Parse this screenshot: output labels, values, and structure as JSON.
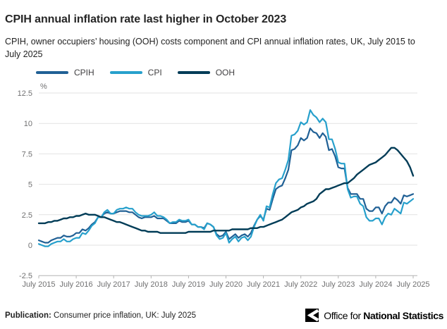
{
  "header": {
    "title": "CPIH annual inflation rate last higher in October 2023",
    "subtitle": "CPIH, owner occupiers’ housing (OOH) costs component and CPI annual inflation rates, UK, July 2015 to July 2025"
  },
  "chart_data": {
    "type": "line",
    "title": "CPIH annual inflation rate last higher in October 2023",
    "unit_label": "%",
    "xlabel": "",
    "ylabel": "%",
    "ylim": [
      -2.5,
      12.5
    ],
    "y_ticks": [
      12.5,
      10,
      7.5,
      5,
      2.5,
      0,
      -2.5
    ],
    "x_tick_labels": [
      "July 2015",
      "July 2016",
      "July 2017",
      "July 2018",
      "July 2019",
      "July 2020",
      "July 2021",
      "July 2022",
      "July 2023",
      "July 2024",
      "July 2025"
    ],
    "x_frequency": "monthly",
    "x_range": [
      "July 2015",
      "July 2025"
    ],
    "grid": true,
    "legend_position": "top-left",
    "series": [
      {
        "name": "CPIH",
        "color": "#206095",
        "values": [
          0.4,
          0.3,
          0.2,
          0.2,
          0.4,
          0.5,
          0.6,
          0.6,
          0.8,
          0.7,
          0.7,
          0.8,
          1.0,
          1.0,
          1.3,
          1.2,
          1.4,
          1.7,
          1.9,
          2.3,
          2.3,
          2.6,
          2.7,
          2.6,
          2.6,
          2.7,
          2.8,
          2.8,
          2.8,
          2.7,
          2.7,
          2.5,
          2.3,
          2.2,
          2.3,
          2.3,
          2.3,
          2.4,
          2.2,
          2.2,
          2.2,
          2.0,
          1.8,
          1.8,
          1.8,
          2.0,
          1.9,
          1.9,
          2.0,
          1.7,
          1.7,
          1.5,
          1.5,
          1.4,
          1.8,
          1.7,
          1.5,
          0.9,
          0.7,
          0.8,
          1.1,
          0.5,
          0.7,
          0.9,
          0.6,
          0.8,
          0.9,
          0.7,
          1.0,
          1.6,
          2.1,
          2.4,
          2.1,
          3.0,
          2.9,
          3.8,
          4.6,
          4.8,
          4.9,
          5.5,
          6.2,
          7.8,
          7.9,
          8.2,
          8.8,
          8.6,
          8.8,
          9.6,
          9.3,
          9.2,
          8.8,
          9.2,
          8.9,
          7.8,
          7.9,
          7.3,
          6.4,
          6.3,
          6.3,
          4.7,
          4.2,
          4.2,
          4.2,
          3.8,
          3.8,
          3.0,
          2.8,
          2.8,
          3.1,
          3.1,
          2.6,
          3.2,
          3.5,
          3.5,
          3.9,
          3.7,
          3.4,
          4.1,
          4.0,
          4.1,
          4.2
        ]
      },
      {
        "name": "CPI",
        "color": "#27A0CC",
        "values": [
          0.1,
          0.0,
          -0.1,
          -0.1,
          0.1,
          0.2,
          0.3,
          0.3,
          0.5,
          0.3,
          0.3,
          0.5,
          0.6,
          0.6,
          1.0,
          0.9,
          1.2,
          1.6,
          1.8,
          2.3,
          2.3,
          2.7,
          2.9,
          2.6,
          2.6,
          2.9,
          3.0,
          3.0,
          3.1,
          3.0,
          3.0,
          2.7,
          2.5,
          2.4,
          2.4,
          2.4,
          2.5,
          2.7,
          2.4,
          2.4,
          2.3,
          2.1,
          1.8,
          1.9,
          1.9,
          2.1,
          2.0,
          2.0,
          2.1,
          1.7,
          1.7,
          1.5,
          1.5,
          1.3,
          1.8,
          1.7,
          1.5,
          0.8,
          0.5,
          0.6,
          1.0,
          0.2,
          0.5,
          0.7,
          0.3,
          0.6,
          0.7,
          0.4,
          0.7,
          1.5,
          2.1,
          2.5,
          2.0,
          3.2,
          3.1,
          4.2,
          5.1,
          5.4,
          5.5,
          6.2,
          7.0,
          9.0,
          9.1,
          9.4,
          10.1,
          9.9,
          10.1,
          11.1,
          10.7,
          10.5,
          10.1,
          10.4,
          10.1,
          8.7,
          8.7,
          7.9,
          6.8,
          6.7,
          6.7,
          4.6,
          3.9,
          4.0,
          4.0,
          3.4,
          3.2,
          2.3,
          2.0,
          2.0,
          2.2,
          2.2,
          1.7,
          2.3,
          2.6,
          2.5,
          3.0,
          2.8,
          2.6,
          3.5,
          3.4,
          3.6,
          3.8
        ]
      },
      {
        "name": "OOH",
        "color": "#003C57",
        "values": [
          1.8,
          1.8,
          1.8,
          1.9,
          1.9,
          2.0,
          2.0,
          2.1,
          2.2,
          2.2,
          2.3,
          2.3,
          2.4,
          2.4,
          2.5,
          2.6,
          2.5,
          2.5,
          2.5,
          2.4,
          2.3,
          2.3,
          2.2,
          2.1,
          2.0,
          1.9,
          1.9,
          1.8,
          1.7,
          1.6,
          1.5,
          1.4,
          1.3,
          1.2,
          1.2,
          1.1,
          1.1,
          1.1,
          1.1,
          1.0,
          1.0,
          1.0,
          1.0,
          1.0,
          1.0,
          1.0,
          1.0,
          1.0,
          1.1,
          1.1,
          1.1,
          1.1,
          1.1,
          1.1,
          1.1,
          1.1,
          1.2,
          1.2,
          1.2,
          1.2,
          1.2,
          1.2,
          1.3,
          1.3,
          1.3,
          1.3,
          1.3,
          1.3,
          1.4,
          1.4,
          1.4,
          1.5,
          1.5,
          1.6,
          1.7,
          1.8,
          1.9,
          2.0,
          2.1,
          2.3,
          2.5,
          2.7,
          2.8,
          2.9,
          3.1,
          3.2,
          3.4,
          3.5,
          3.6,
          3.8,
          4.2,
          4.4,
          4.6,
          4.6,
          4.7,
          4.8,
          4.9,
          5.0,
          5.1,
          5.1,
          5.3,
          5.5,
          5.8,
          6.0,
          6.2,
          6.4,
          6.6,
          6.7,
          6.8,
          7.0,
          7.2,
          7.4,
          7.7,
          8.0,
          8.0,
          7.8,
          7.5,
          7.2,
          6.9,
          6.4,
          5.7
        ]
      }
    ]
  },
  "footer": {
    "publication_label": "Publication:",
    "publication_text": " Consumer price inflation, UK: July 2025",
    "logo_text_regular": "Office for ",
    "logo_text_bold": "National Statistics"
  }
}
